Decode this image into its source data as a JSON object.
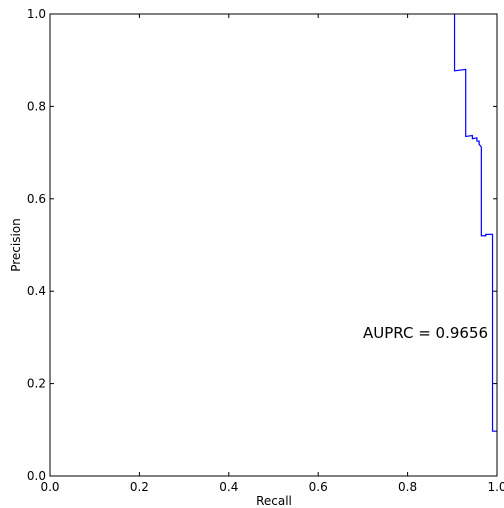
{
  "chart_data": {
    "type": "line",
    "title": "",
    "xlabel": "Recall",
    "ylabel": "Precision",
    "xlim": [
      0.0,
      1.0
    ],
    "ylim": [
      0.0,
      1.0
    ],
    "grid": false,
    "xticks": [
      "0.0",
      "0.2",
      "0.4",
      "0.6",
      "0.8",
      "1.0"
    ],
    "yticks": [
      "0.0",
      "0.2",
      "0.4",
      "0.6",
      "0.8",
      "1.0"
    ],
    "annotation": "AUPRC = 0.9656",
    "series": [
      {
        "color": "#0000ff",
        "style": "step",
        "x": [
          0.905,
          0.905,
          0.93,
          0.93,
          0.945,
          0.945,
          0.955,
          0.955,
          0.96,
          0.96,
          0.965,
          0.965,
          0.975,
          0.975,
          0.99,
          0.99,
          1.0
        ],
        "y": [
          1.0,
          0.877,
          0.88,
          0.735,
          0.737,
          0.73,
          0.732,
          0.725,
          0.725,
          0.718,
          0.712,
          0.52,
          0.52,
          0.523,
          0.523,
          0.097,
          0.097
        ]
      }
    ]
  }
}
